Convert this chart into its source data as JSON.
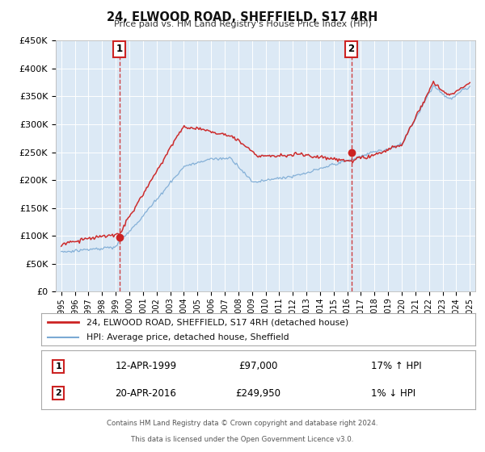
{
  "title": "24, ELWOOD ROAD, SHEFFIELD, S17 4RH",
  "subtitle": "Price paid vs. HM Land Registry's House Price Index (HPI)",
  "background_color": "#dce9f5",
  "plot_bg_color": "#dce9f5",
  "fig_bg_color": "#ffffff",
  "grid_color": "#ffffff",
  "line1_color": "#cc2222",
  "line2_color": "#7baad4",
  "line1_label": "24, ELWOOD ROAD, SHEFFIELD, S17 4RH (detached house)",
  "line2_label": "HPI: Average price, detached house, Sheffield",
  "marker_color": "#cc2222",
  "vline_color": "#cc2222",
  "ann1_x": 1999.28,
  "ann1_y": 97000,
  "ann2_x": 2016.3,
  "ann2_y": 249950,
  "ann1_date": "12-APR-1999",
  "ann1_price": "£97,000",
  "ann1_hpi": "17% ↑ HPI",
  "ann2_date": "20-APR-2016",
  "ann2_price": "£249,950",
  "ann2_hpi": "1% ↓ HPI",
  "footer_line1": "Contains HM Land Registry data © Crown copyright and database right 2024.",
  "footer_line2": "This data is licensed under the Open Government Licence v3.0.",
  "ylim": [
    0,
    450000
  ],
  "yticks": [
    0,
    50000,
    100000,
    150000,
    200000,
    250000,
    300000,
    350000,
    400000,
    450000
  ],
  "ytick_labels": [
    "£0",
    "£50K",
    "£100K",
    "£150K",
    "£200K",
    "£250K",
    "£300K",
    "£350K",
    "£400K",
    "£450K"
  ],
  "xlim_start": 1994.6,
  "xlim_end": 2025.4,
  "xtick_years": [
    1995,
    1996,
    1997,
    1998,
    1999,
    2000,
    2001,
    2002,
    2003,
    2004,
    2005,
    2006,
    2007,
    2008,
    2009,
    2010,
    2011,
    2012,
    2013,
    2014,
    2015,
    2016,
    2017,
    2018,
    2019,
    2020,
    2021,
    2022,
    2023,
    2024,
    2025
  ]
}
